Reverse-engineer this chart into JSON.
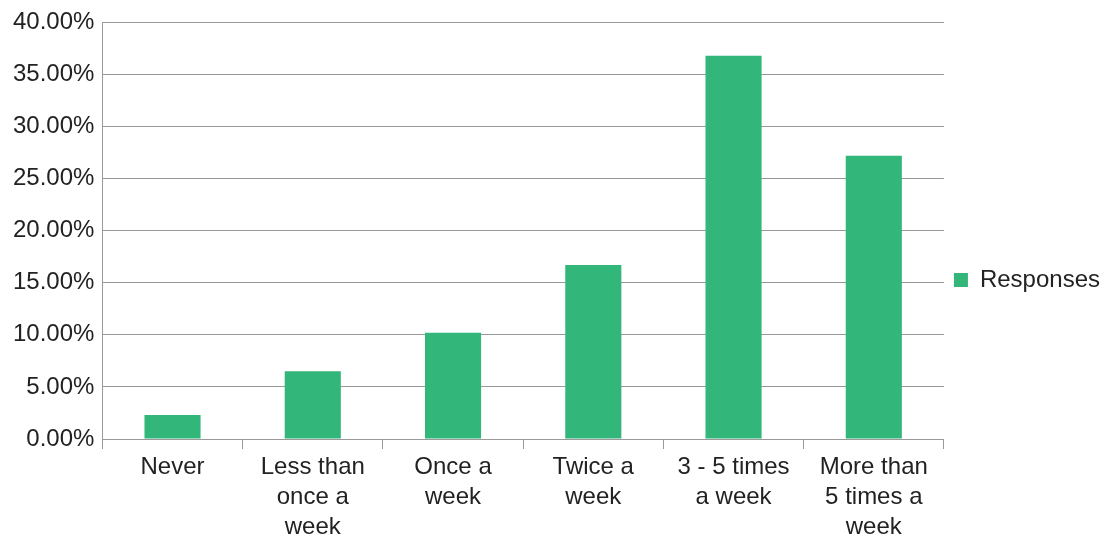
{
  "chart_data": {
    "type": "bar",
    "categories": [
      "Never",
      "Less than once a week",
      "Once a week",
      "Twice a week",
      "3 - 5 times a week",
      "More than 5 times a week"
    ],
    "series": [
      {
        "name": "Responses",
        "color": "#33b679",
        "values": [
          2.3,
          6.5,
          10.2,
          16.7,
          36.8,
          27.2
        ]
      }
    ],
    "ylim": [
      0,
      40
    ],
    "yticks": [
      {
        "value": 0,
        "label": "0.00%"
      },
      {
        "value": 5,
        "label": "5.00%"
      },
      {
        "value": 10,
        "label": "10.00%"
      },
      {
        "value": 15,
        "label": "15.00%"
      },
      {
        "value": 20,
        "label": "20.00%"
      },
      {
        "value": 25,
        "label": "25.00%"
      },
      {
        "value": 30,
        "label": "30.00%"
      },
      {
        "value": 35,
        "label": "35.00%"
      },
      {
        "value": 40,
        "label": "40.00%"
      }
    ],
    "grid": "y",
    "legend": "right"
  }
}
